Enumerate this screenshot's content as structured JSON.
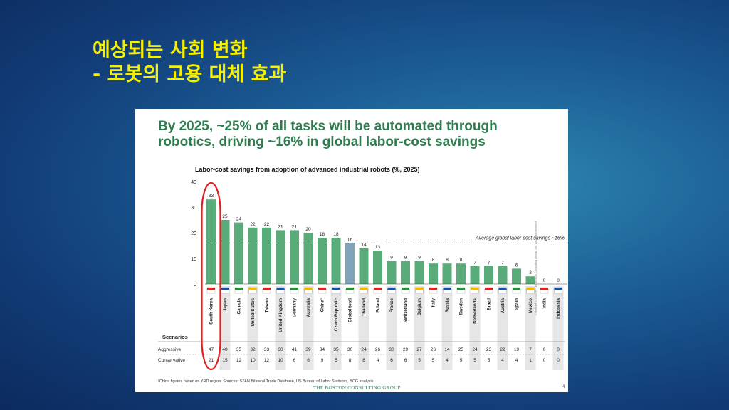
{
  "slide": {
    "title_line1": "예상되는 사회 변화",
    "title_line2": "- 로봇의 고용 대체 효과"
  },
  "panel": {
    "headline_line1": "By 2025, ~25% of all tasks will be automated through",
    "headline_line2": "robotics, driving ~16% in global labor-cost savings",
    "footnote": "¹China figures based on YRD region. Sources: STAN Bilateral Trade Database, US Bureau of Labor Statistics, BCG analysis",
    "brand": "THE BOSTON CONSULTING GROUP",
    "page_number": "4",
    "copyright": "Copyright © 2015 by The Boston Consulting Group, Inc. All rights reserved."
  },
  "colors": {
    "bar": "#5aab7a",
    "global_bar": "#7fa3b8",
    "highlight": "#e02020",
    "headline": "#2e7d4f"
  },
  "chart_data": {
    "type": "bar",
    "title": "Labor-cost savings from adoption of advanced industrial robots (%, 2025)",
    "ylim": [
      0,
      40
    ],
    "yticks": [
      "0",
      "10",
      "20",
      "30",
      "40"
    ],
    "categories": [
      "South Korea",
      "Japan",
      "Canada",
      "United States",
      "Taiwan",
      "United Kingdom",
      "Germany",
      "Australia",
      "China¹",
      "Czech Republic",
      "Global total",
      "Thailand",
      "Poland",
      "France",
      "Switzerland",
      "Belgium",
      "Italy",
      "Russia",
      "Sweden",
      "Netherlands",
      "Brazil",
      "Austria",
      "Spain",
      "Mexico",
      "India",
      "Indonesia"
    ],
    "values": [
      33,
      25,
      24,
      22,
      22,
      21,
      21,
      20,
      18,
      18,
      16,
      14,
      13,
      9,
      9,
      9,
      8,
      8,
      8,
      7,
      7,
      7,
      6,
      3,
      0,
      0
    ],
    "highlighted_category": "South Korea",
    "average_line": {
      "value": 16,
      "label": "Average global labor-cost savings ~16%"
    },
    "scenarios": {
      "header": "Scenarios",
      "rows": [
        {
          "name": "Aggressive",
          "values": [
            "47",
            "40",
            "35",
            "32",
            "33",
            "30",
            "41",
            "39",
            "34",
            "35",
            "30",
            "24",
            "26",
            "30",
            "29",
            "27",
            "26",
            "14",
            "25",
            "24",
            "23",
            "22",
            "19",
            "7",
            "0",
            "0"
          ]
        },
        {
          "name": "Conservative",
          "values": [
            "21",
            "15",
            "12",
            "10",
            "12",
            "10",
            "6",
            "6",
            "9",
            "5",
            "8",
            "8",
            "4",
            "6",
            "6",
            "5",
            "5",
            "4",
            "5",
            "5",
            "5",
            "4",
            "4",
            "1",
            "0",
            "0"
          ]
        }
      ]
    }
  }
}
